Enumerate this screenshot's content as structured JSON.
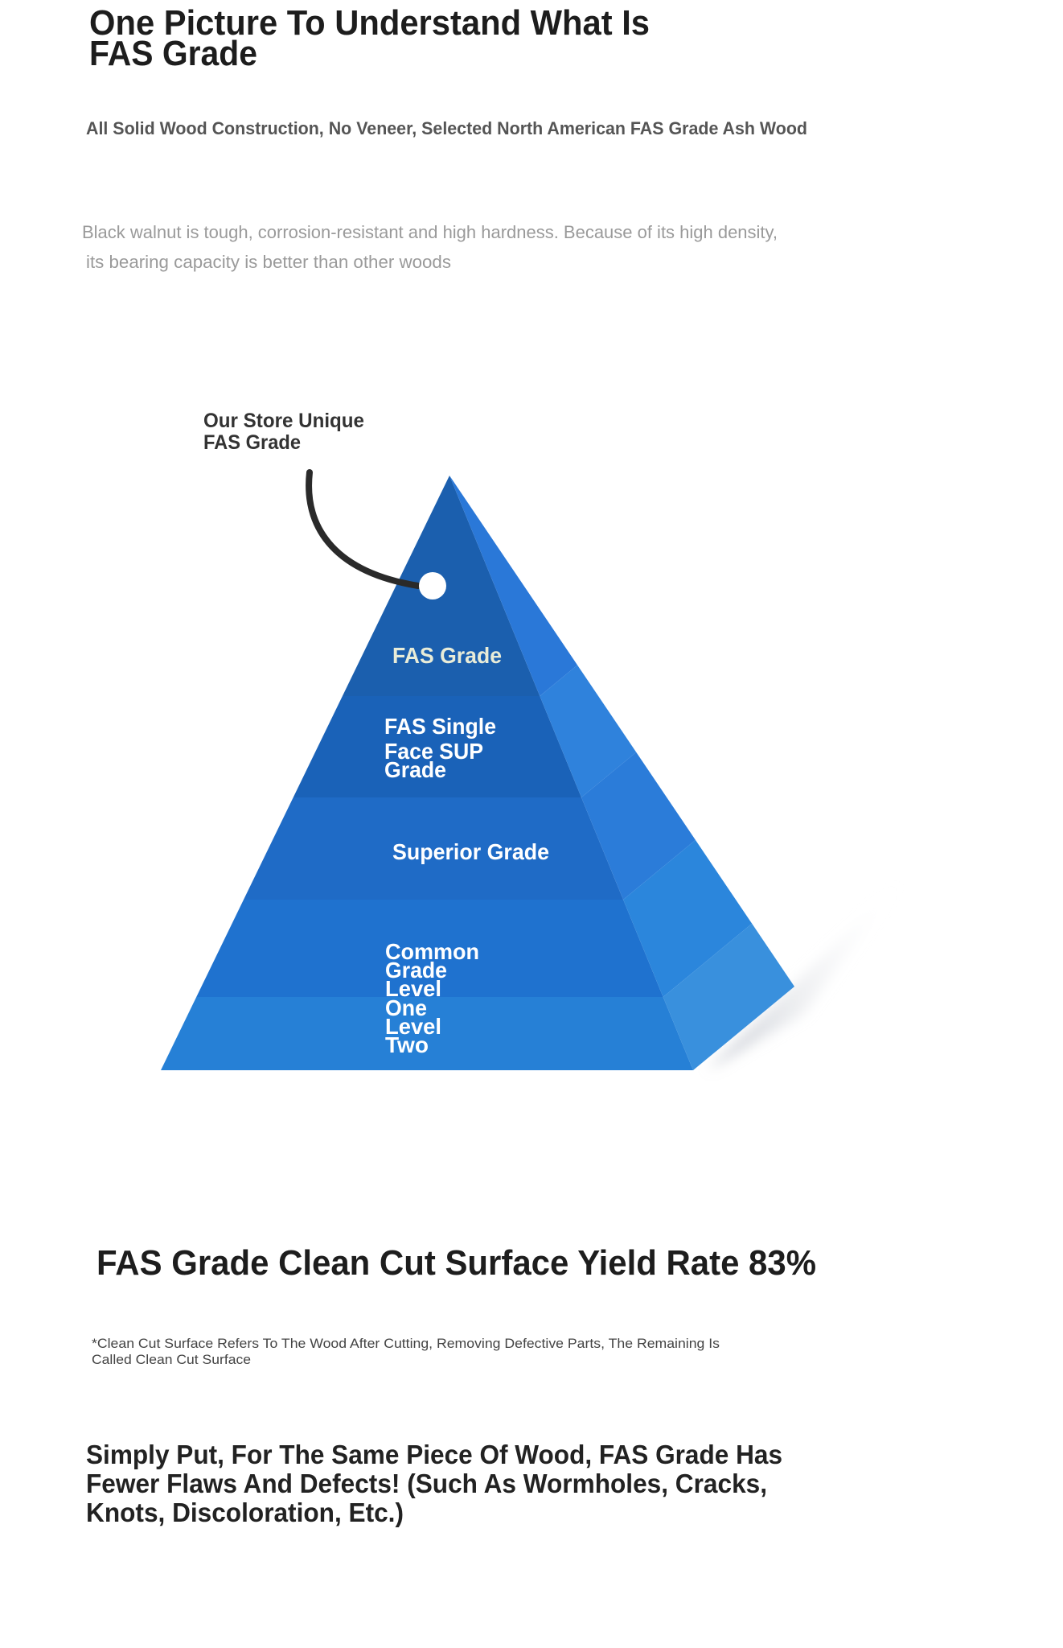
{
  "header": {
    "title": [
      "One Picture To Understand What Is",
      "FAS Grade"
    ],
    "subtitle": "All Solid Wood Construction, No Veneer, Selected North American FAS Grade Ash Wood",
    "description": [
      "Black walnut is tough, corrosion-resistant and high hardness. Because of its high density,",
      "its bearing capacity is better than other woods"
    ]
  },
  "pyramid": {
    "callout": [
      "Our Store Unique",
      "FAS Grade"
    ],
    "levels": [
      {
        "label": [
          "FAS Grade"
        ]
      },
      {
        "label": [
          "FAS Single",
          "Face SUP",
          "Grade"
        ]
      },
      {
        "label": [
          "Superior Grade"
        ]
      },
      {
        "label": [
          "Common",
          "Grade",
          "Level",
          "One",
          "Level",
          "Two"
        ]
      }
    ]
  },
  "yield": {
    "heading": "FAS Grade Clean Cut Surface Yield Rate 83%",
    "note": [
      "*Clean Cut Surface Refers To The Wood After Cutting, Removing Defective Parts, The Remaining Is",
      "Called Clean Cut Surface"
    ]
  },
  "summary": [
    "Simply Put, For The Same Piece Of Wood, FAS Grade Has",
    "Fewer Flaws And Defects! (Such As Wormholes, Cracks,",
    "Knots, Discoloration, Etc.)"
  ]
}
